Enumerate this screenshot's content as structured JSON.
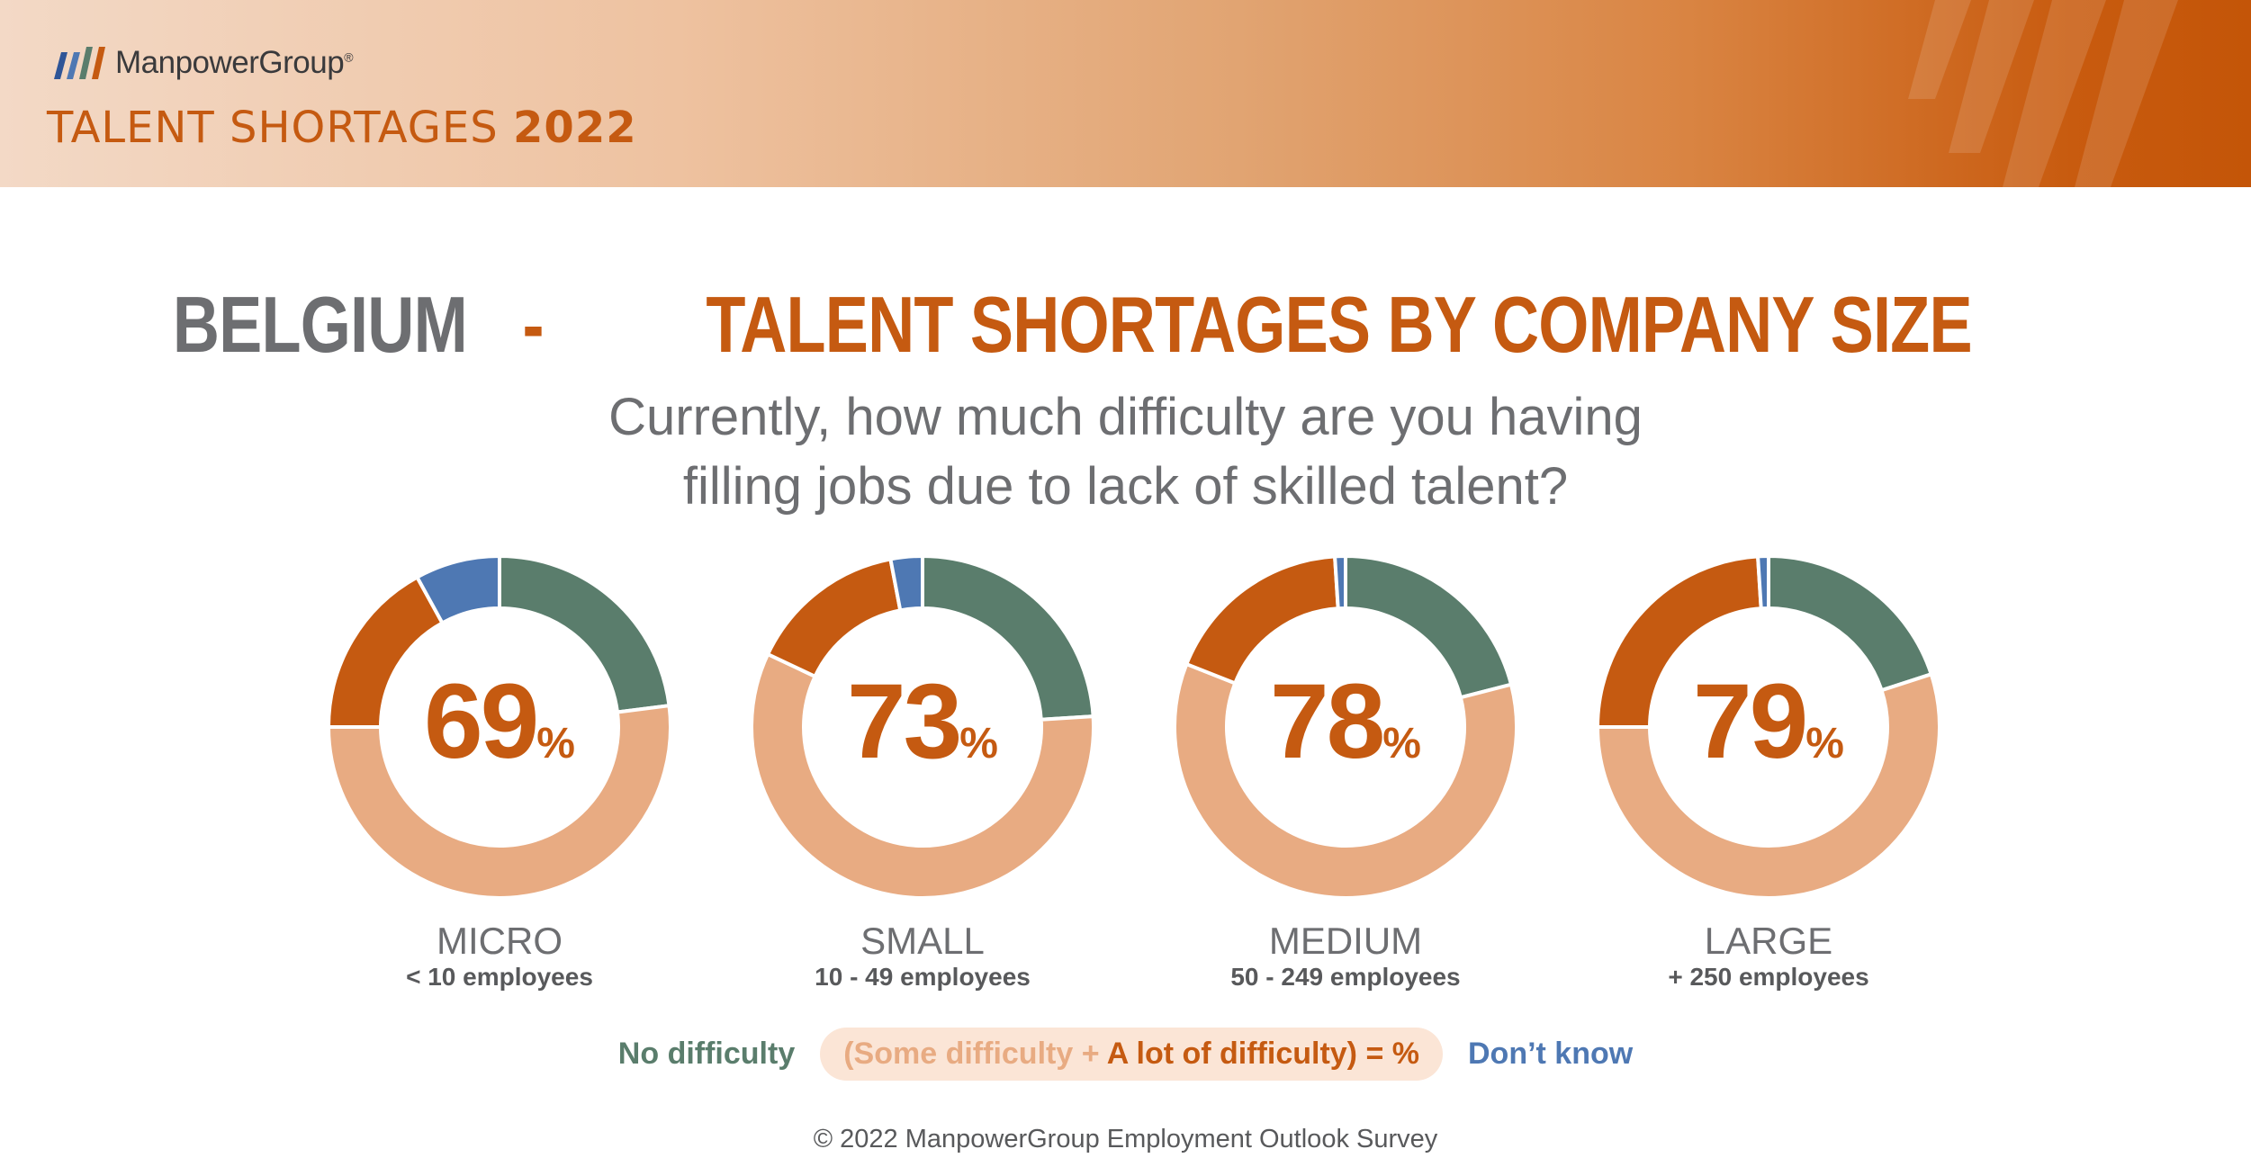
{
  "header": {
    "brand": "ManpowerGroup",
    "brand_mark": "®",
    "report_title": "TALENT SHORTAGES",
    "report_year": "2022",
    "logo_icon": "manpowergroup-logo-icon"
  },
  "colors": {
    "no_difficulty": "#5a7d6c",
    "some_difficulty": "#e8ab82",
    "lot_of_difficulty": "#c55a11",
    "dont_know": "#4e78b3",
    "accent": "#c55a11",
    "text_gray": "#6d6e71"
  },
  "chart_data": {
    "type": "donut",
    "title_country": "BELGIUM",
    "title_separator": "-",
    "title_topic": "TALENT SHORTAGES BY COMPANY SIZE",
    "question_line1": "Currently, how much difficulty are you having",
    "question_line2": "filling jobs due to lack of skilled talent?",
    "unit": "%",
    "series_names": [
      "No difficulty",
      "Some difficulty",
      "A lot of difficulty",
      "Don't know"
    ],
    "categories": [
      {
        "label": "MICRO",
        "sublabel": "< 10 employees",
        "total": "69",
        "no_difficulty": 23,
        "some_difficulty": 52,
        "lot_of_difficulty": 17,
        "dont_know": 8
      },
      {
        "label": "SMALL",
        "sublabel": "10 - 49 employees",
        "total": "73",
        "no_difficulty": 24,
        "some_difficulty": 58,
        "lot_of_difficulty": 15,
        "dont_know": 3
      },
      {
        "label": "MEDIUM",
        "sublabel": "50 - 249 employees",
        "total": "78",
        "no_difficulty": 21,
        "some_difficulty": 60,
        "lot_of_difficulty": 18,
        "dont_know": 1
      },
      {
        "label": "LARGE",
        "sublabel": "+ 250 employees",
        "total": "79",
        "no_difficulty": 20,
        "some_difficulty": 55,
        "lot_of_difficulty": 24,
        "dont_know": 1
      }
    ]
  },
  "legend": {
    "no_difficulty": "No difficulty",
    "some_difficulty": "(Some difficulty",
    "plus": " + ",
    "lot_of_difficulty": "A lot of difficulty)",
    "equals": " = %",
    "dont_know": "Don’t know"
  },
  "footer": "© 2022 ManpowerGroup Employment Outlook Survey"
}
